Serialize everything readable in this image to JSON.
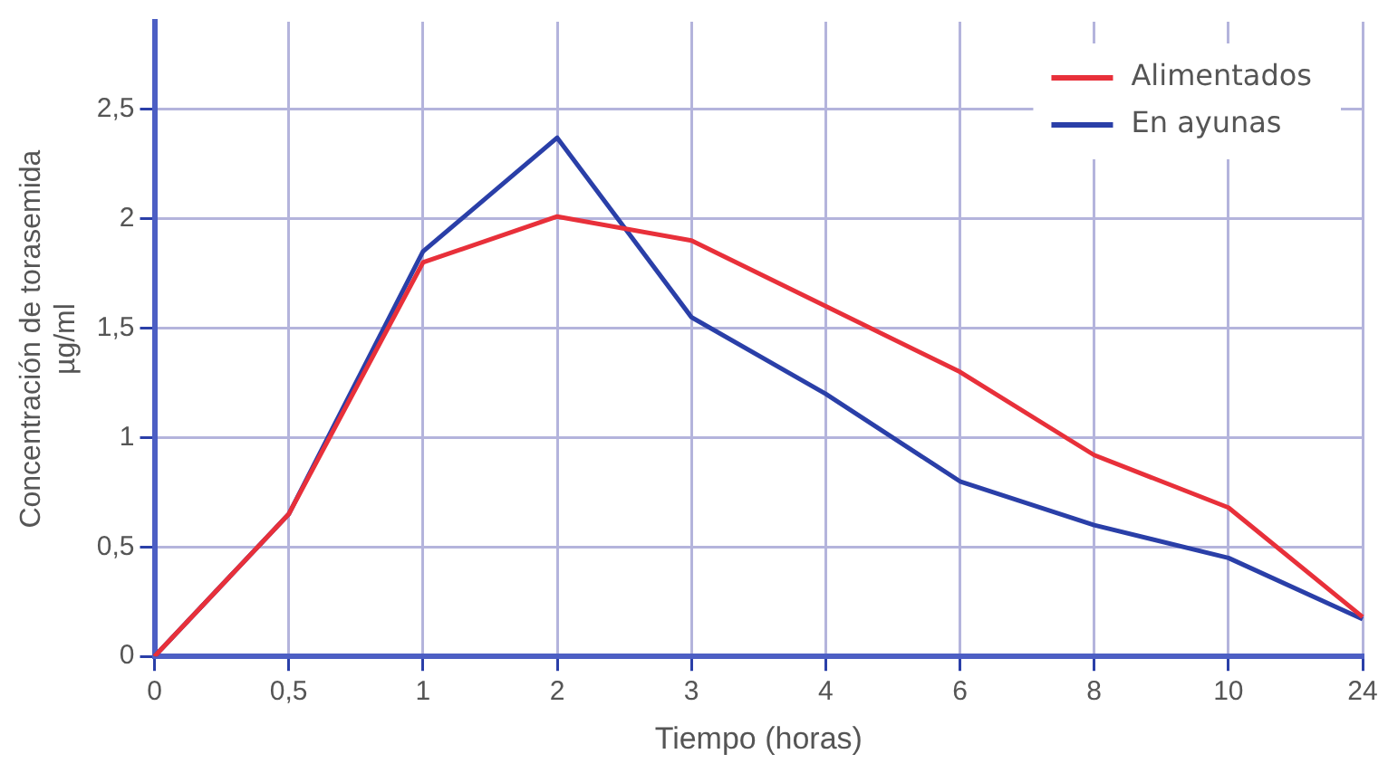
{
  "chart_data": {
    "type": "line",
    "xlabel": "Tiempo (horas)",
    "ylabel": "Concentración de torasemida\nµg/ml",
    "categories": [
      "0",
      "0,5",
      "1",
      "2",
      "3",
      "4",
      "6",
      "8",
      "10",
      "24"
    ],
    "series": [
      {
        "name": "Alimentados",
        "color": "#e8303a",
        "values": [
          0,
          0.65,
          1.8,
          2.01,
          1.9,
          1.6,
          1.3,
          0.92,
          0.68,
          0.18
        ]
      },
      {
        "name": "En ayunas",
        "color": "#2a3fa8",
        "values": [
          0,
          0.65,
          1.85,
          2.37,
          1.55,
          1.2,
          0.8,
          0.6,
          0.45,
          0.17
        ]
      }
    ],
    "ylim": [
      0,
      2.9
    ],
    "yticks": [
      0,
      {
        "value": 0.5,
        "label": "0,5"
      },
      1,
      {
        "value": 1.5,
        "label": "1,5"
      },
      2,
      {
        "value": 2.5,
        "label": "2,5"
      }
    ],
    "grid": true,
    "legend": "top right",
    "marker": "none",
    "line_style": "solid"
  }
}
